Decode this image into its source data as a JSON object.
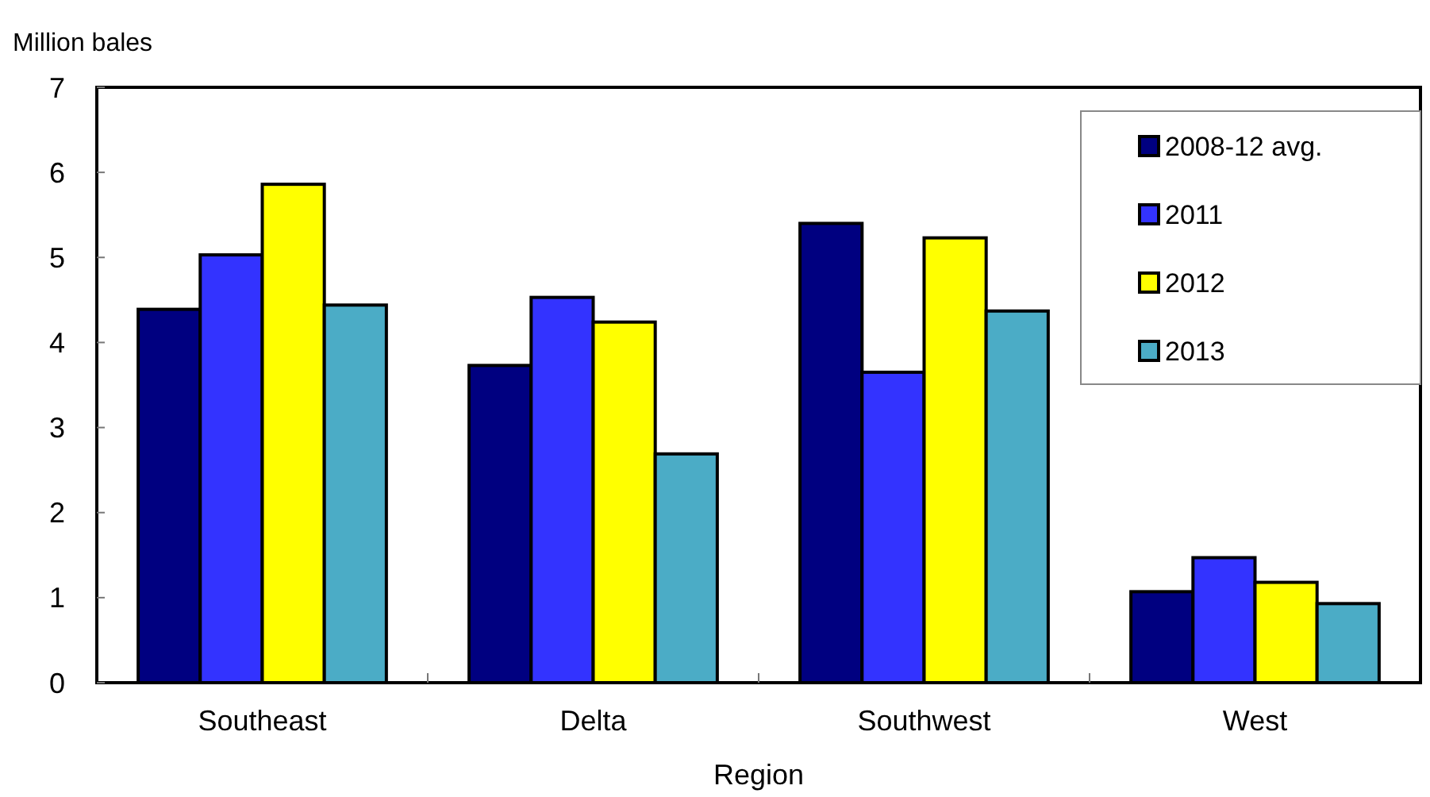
{
  "chart_data": {
    "type": "bar",
    "ylabel": "Million bales",
    "xlabel": "Region",
    "categories": [
      "Southeast",
      "Delta",
      "Southwest",
      "West"
    ],
    "series": [
      {
        "name": "2008-12 avg.",
        "color": "#000080",
        "values": [
          4.39,
          3.73,
          5.4,
          1.07
        ]
      },
      {
        "name": "2011",
        "color": "#3333ff",
        "values": [
          5.03,
          4.53,
          3.65,
          1.47
        ]
      },
      {
        "name": "2012",
        "color": "#ffff00",
        "values": [
          5.86,
          4.24,
          5.23,
          1.18
        ]
      },
      {
        "name": "2013",
        "color": "#4bacc6",
        "values": [
          4.44,
          2.69,
          4.37,
          0.93
        ]
      }
    ],
    "ylim": [
      0,
      7
    ],
    "yticks": [
      0,
      1,
      2,
      3,
      4,
      5,
      6,
      7
    ],
    "grid": false,
    "legend": "top right"
  }
}
